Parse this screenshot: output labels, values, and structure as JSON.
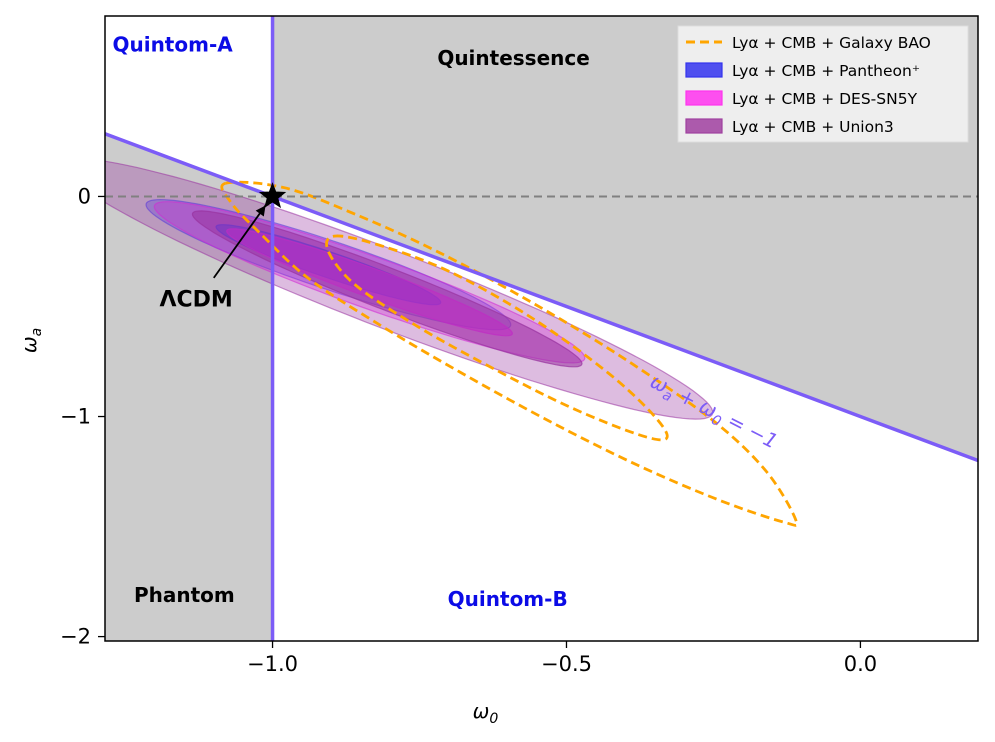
{
  "chart_data": {
    "type": "contour",
    "xlabel_main": "ω",
    "xlabel_sub": "0",
    "ylabel_main": "ω",
    "ylabel_sub": "a",
    "xlim": [
      -1.285,
      0.2
    ],
    "ylim": [
      -2.02,
      0.82
    ],
    "xticks": [
      {
        "value": -1.0,
        "label": "−1.0"
      },
      {
        "value": -0.5,
        "label": "−0.5"
      },
      {
        "value": 0.0,
        "label": "0.0"
      }
    ],
    "yticks": [
      {
        "value": 0,
        "label": "0"
      },
      {
        "value": -1,
        "label": "−1"
      },
      {
        "value": -2,
        "label": "−2"
      }
    ],
    "reference_line": {
      "y": 0
    },
    "boundaries": {
      "vertical": {
        "x": -1.0
      },
      "diagonal": {
        "equation": "ωa + ω0 = −1"
      }
    },
    "regions": [
      {
        "key": "quintom_a",
        "label": "Quintom-A",
        "x": -1.17,
        "y": 0.69,
        "color": "#0b0be6"
      },
      {
        "key": "quintessence",
        "label": "Quintessence",
        "x": -0.59,
        "y": 0.63,
        "color": "#000000"
      },
      {
        "key": "phantom",
        "label": "Phantom",
        "x": -1.15,
        "y": -1.81,
        "color": "#000000"
      },
      {
        "key": "quintom_b",
        "label": "Quintom-B",
        "x": -0.6,
        "y": -1.83,
        "color": "#0b0be6"
      }
    ],
    "marker": {
      "label": "ΛCDM",
      "x": -1.0,
      "y": 0.0
    },
    "line_label": {
      "parts": [
        "ω",
        "a",
        " + ω",
        "0",
        " = −1"
      ],
      "x": -0.36,
      "y": -0.86,
      "angle_deg": 27,
      "color": "#7c5cf7"
    },
    "legend": {
      "position": "top-right",
      "entries": [
        {
          "key": "bao",
          "label": "Lyα + CMB + Galaxy BAO",
          "style": "dashed",
          "color": "#ffa500"
        },
        {
          "key": "pantheon",
          "label": "Lyα + CMB + Pantheon⁺",
          "style": "filled",
          "color": "#3333ee"
        },
        {
          "key": "des",
          "label": "Lyα + CMB + DES-SN5Y",
          "style": "filled",
          "color": "#ff33ee"
        },
        {
          "key": "union",
          "label": "Lyα + CMB + Union3",
          "style": "filled",
          "color": "#a040a0"
        }
      ]
    },
    "series": [
      {
        "name": "Lyα + CMB + Pantheon⁺",
        "style": "filled",
        "color": "#3a3af5",
        "center": [
          -0.905,
          -0.31
        ],
        "major_dir_deg": 136.5,
        "sigma1": {
          "major": 0.26,
          "minor": 0.045
        },
        "sigma2": {
          "major": 0.42,
          "minor": 0.085
        }
      },
      {
        "name": "Lyα + CMB + DES-SN5Y",
        "style": "filled",
        "color": "#ee22ee",
        "center": [
          -0.835,
          -0.39
        ],
        "major_dir_deg": 135,
        "sigma1": {
          "major": 0.34,
          "minor": 0.05
        },
        "sigma2": {
          "major": 0.51,
          "minor": 0.09
        }
      },
      {
        "name": "Lyα + CMB + Union3",
        "style": "filled",
        "color": "#9933a0",
        "center": [
          -0.805,
          -0.42
        ],
        "major_dir_deg": 133,
        "sigma1": {
          "major": 0.48,
          "minor": 0.07
        },
        "sigma2": {
          "major": 0.8,
          "minor": 0.13
        }
      },
      {
        "name": "Lyα + CMB + Galaxy BAO",
        "style": "dashed",
        "color": "#ffa500",
        "contour_1sigma": [
          [
            -0.895,
            -0.18
          ],
          [
            -0.82,
            -0.22
          ],
          [
            -0.7,
            -0.34
          ],
          [
            -0.56,
            -0.55
          ],
          [
            -0.43,
            -0.8
          ],
          [
            -0.35,
            -1.0
          ],
          [
            -0.33,
            -1.1
          ],
          [
            -0.38,
            -1.08
          ],
          [
            -0.5,
            -0.95
          ],
          [
            -0.64,
            -0.76
          ],
          [
            -0.76,
            -0.58
          ],
          [
            -0.86,
            -0.4
          ],
          [
            -0.905,
            -0.25
          ],
          [
            -0.895,
            -0.18
          ]
        ],
        "contour_2sigma": [
          [
            -1.08,
            0.06
          ],
          [
            -0.98,
            0.04
          ],
          [
            -0.86,
            -0.08
          ],
          [
            -0.72,
            -0.25
          ],
          [
            -0.56,
            -0.48
          ],
          [
            -0.4,
            -0.74
          ],
          [
            -0.25,
            -1.02
          ],
          [
            -0.16,
            -1.25
          ],
          [
            -0.11,
            -1.47
          ],
          [
            -0.13,
            -1.48
          ],
          [
            -0.24,
            -1.38
          ],
          [
            -0.38,
            -1.22
          ],
          [
            -0.53,
            -1.02
          ],
          [
            -0.68,
            -0.8
          ],
          [
            -0.82,
            -0.58
          ],
          [
            -0.94,
            -0.37
          ],
          [
            -1.02,
            -0.17
          ],
          [
            -1.07,
            -0.03
          ],
          [
            -1.08,
            0.06
          ]
        ]
      }
    ]
  }
}
